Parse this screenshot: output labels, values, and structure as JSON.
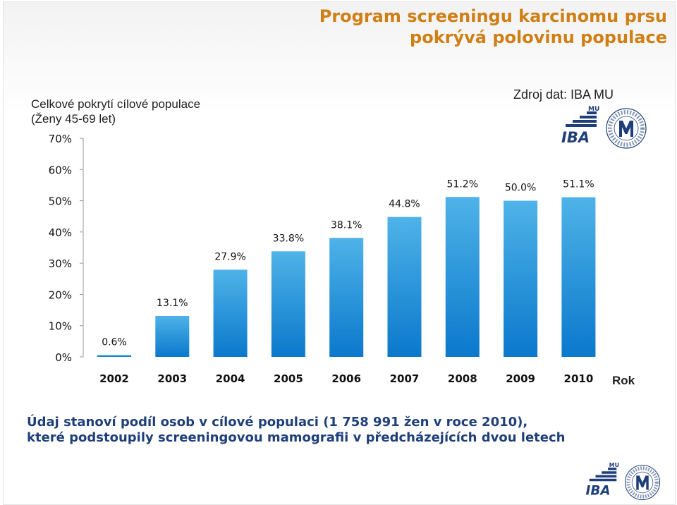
{
  "header": {
    "title_line1": "Program screeningu karcinomu prsu",
    "title_line2": "pokrývá polovinu populace"
  },
  "source": "Zdroj dat: IBA MU",
  "logo": {
    "iba_text": "IBA",
    "mu_text": "MU",
    "ring_text": "UNIVERSITAS MASARYKIANA BRUNENSIS"
  },
  "note": {
    "line1": "Údaj stanoví podíl osob v cílové populaci (1 758 991  žen v roce 2010),",
    "line2": "které podstoupily screeningovou mamografii v předcházejících dvou letech"
  },
  "colors": {
    "title": "#d07f15",
    "bar_top": "#4fb3e8",
    "bar_bottom": "#0a78cc",
    "note": "#1f3f7a"
  },
  "chart_data": {
    "type": "bar",
    "title": "Celkové pokrytí cílové populace",
    "subtitle": "(Ženy 45-69 let)",
    "xlabel": "Rok",
    "ylabel": "",
    "categories": [
      "2002",
      "2003",
      "2004",
      "2005",
      "2006",
      "2007",
      "2008",
      "2009",
      "2010"
    ],
    "values": [
      0.6,
      13.1,
      27.9,
      33.8,
      38.1,
      44.8,
      51.2,
      50.0,
      51.1
    ],
    "data_labels": [
      "0.6%",
      "13.1%",
      "27.9%",
      "33.8%",
      "38.1%",
      "44.8%",
      "51.2%",
      "50.0%",
      "51.1%"
    ],
    "ylim": [
      0,
      70
    ],
    "yticks": [
      0,
      10,
      20,
      30,
      40,
      50,
      60,
      70
    ],
    "ytick_labels": [
      "0%",
      "10%",
      "20%",
      "30%",
      "40%",
      "50%",
      "60%",
      "70%"
    ],
    "grid": false,
    "legend": "none"
  }
}
